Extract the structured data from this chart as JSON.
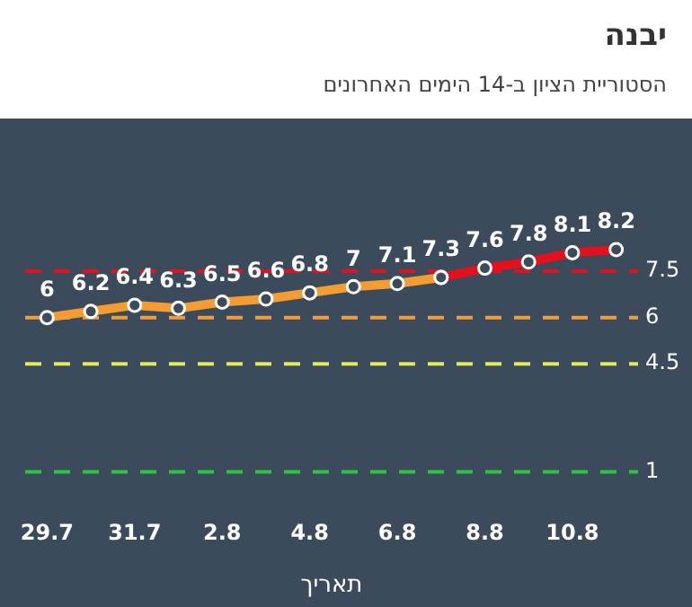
{
  "chart_data": {
    "type": "line",
    "title": "יבנה",
    "subtitle": "הסטוריית הציון ב-14 הימים האחרונים",
    "xlabel": "תאריך",
    "categories": [
      "29.7",
      null,
      "31.7",
      null,
      "2.8",
      null,
      "4.8",
      null,
      "6.8",
      null,
      "8.8",
      null,
      "10.8",
      null
    ],
    "series": [
      {
        "color": "#f39c32",
        "values": [
          6,
          6.2,
          6.4,
          6.3,
          6.5,
          6.6,
          6.8,
          7,
          7.1,
          7.3,
          null,
          null,
          null,
          null
        ],
        "value_labels": [
          "6",
          "6.2",
          "6.4",
          "6.3",
          "6.5",
          "6.6",
          "6.8",
          "7",
          "7.1",
          "7.3",
          null,
          null,
          null,
          null
        ]
      },
      {
        "color": "#e3101e",
        "values": [
          null,
          null,
          null,
          null,
          null,
          null,
          null,
          null,
          null,
          7.3,
          7.6,
          7.8,
          8.1,
          8.2
        ],
        "value_labels": [
          null,
          null,
          null,
          null,
          null,
          null,
          null,
          null,
          null,
          null,
          "7.6",
          "7.8",
          "8.1",
          "8.2"
        ]
      }
    ],
    "tick_labels": "x",
    "grid": false,
    "legend": false,
    "marker": "circle",
    "line_style": "solid",
    "ref_lines": [
      {
        "axis": "y",
        "value": 7.5,
        "label": "7.5",
        "color": "#e3101e",
        "line_style": "dashed"
      },
      {
        "axis": "y",
        "value": 6,
        "label": "6",
        "color": "#f39c32",
        "line_style": "dashed"
      },
      {
        "axis": "y",
        "value": 4.5,
        "label": "4.5",
        "color": "#e8e85a",
        "line_style": "dashed"
      },
      {
        "axis": "y",
        "value": 1,
        "label": "1",
        "color": "#2fc43e",
        "line_style": "dashed"
      }
    ]
  }
}
